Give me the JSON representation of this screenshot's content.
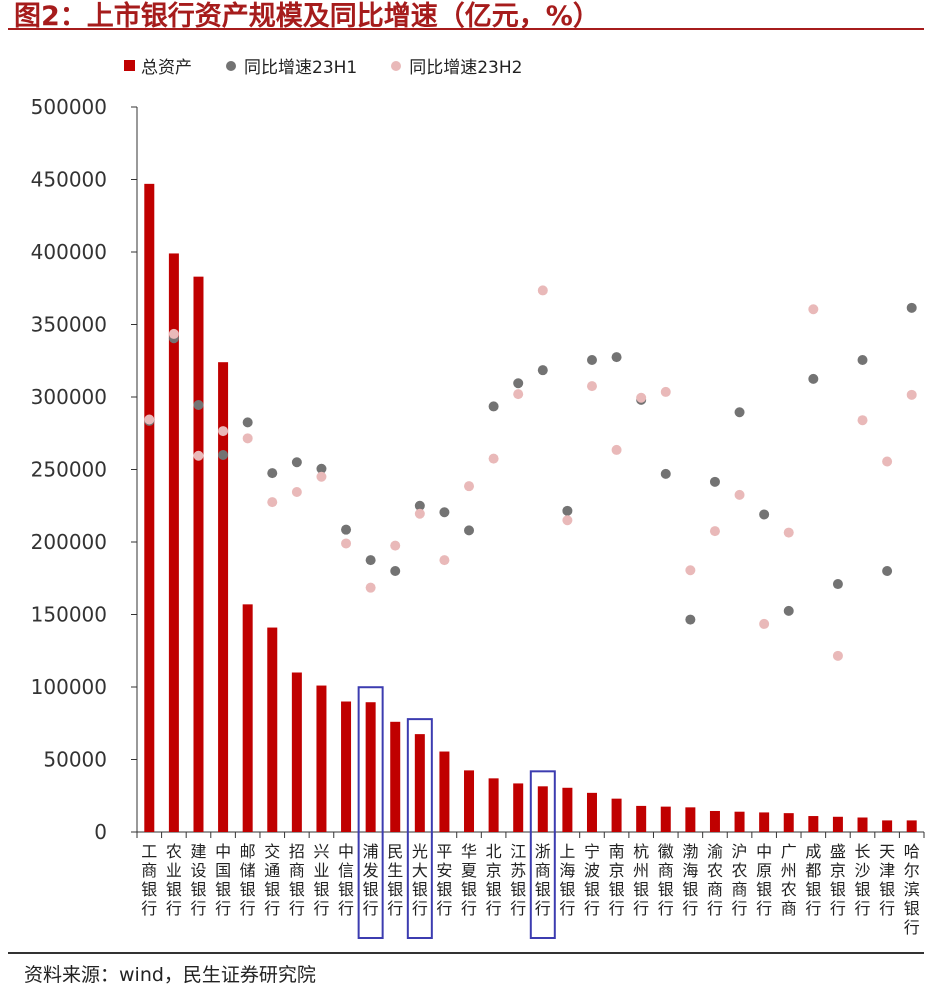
{
  "title": "图2：上市银行资产规模及同比增速（亿元，%）",
  "source": "资料来源：wind，民生证券研究院",
  "colors": {
    "bar": "#c00000",
    "h1": "#737373",
    "h2": "#e9b9b9",
    "highlight": "#3c3cb0",
    "title": "#a61c1c"
  },
  "legend": [
    {
      "label": "总资产",
      "swatch": "bar"
    },
    {
      "label": "同比增速23H1",
      "swatch": "h1"
    },
    {
      "label": "同比增速23H2",
      "swatch": "h2"
    }
  ],
  "chart_data": {
    "type": "bar",
    "ylim": [
      0,
      500000
    ],
    "yticks": [
      0,
      50000,
      100000,
      150000,
      200000,
      250000,
      300000,
      350000,
      400000,
      450000,
      500000
    ],
    "ylabel": "",
    "xlabel": "",
    "categories": [
      "工商银行",
      "农业银行",
      "建设银行",
      "中国银行",
      "邮储银行",
      "交通银行",
      "招商银行",
      "兴业银行",
      "中信银行",
      "浦发银行",
      "民生银行",
      "光大银行",
      "平安银行",
      "华夏银行",
      "北京银行",
      "江苏银行",
      "浙商银行",
      "上海银行",
      "宁波银行",
      "南京银行",
      "杭州银行",
      "徽商银行",
      "渤海银行",
      "渝农商行",
      "沪农商行",
      "中原银行",
      "广州农商",
      "成都银行",
      "盛京银行",
      "长沙银行",
      "天津银行",
      "哈尔滨银行"
    ],
    "highlighted": [
      "浦发银行",
      "光大银行",
      "浙商银行"
    ],
    "series": [
      {
        "name": "总资产",
        "kind": "bar",
        "values": [
          447000,
          399000,
          383000,
          324000,
          157000,
          141000,
          110000,
          101000,
          90000,
          89500,
          76000,
          67500,
          55500,
          42500,
          37000,
          33500,
          31500,
          30500,
          27000,
          23000,
          18000,
          17500,
          17000,
          14500,
          14000,
          13500,
          13000,
          11000,
          10500,
          10000,
          8000,
          8000
        ]
      },
      {
        "name": "同比增速23H1",
        "kind": "scatter",
        "y_axis_equivalent": [
          283500,
          340500,
          294500,
          260000,
          282500,
          247500,
          255000,
          250500,
          208500,
          187500,
          180000,
          225000,
          220500,
          208000,
          293500,
          309500,
          318500,
          221500,
          325500,
          327500,
          298000,
          247000,
          146500,
          241500,
          289500,
          219000,
          152500,
          312500,
          171000,
          325500,
          180000,
          361500
        ]
      },
      {
        "name": "同比增速23H2",
        "kind": "scatter",
        "y_axis_equivalent": [
          284500,
          343500,
          259500,
          276500,
          271500,
          227500,
          234500,
          245000,
          199000,
          168500,
          197500,
          219500,
          187500,
          238500,
          257500,
          302000,
          373500,
          215000,
          307500,
          263500,
          299500,
          303500,
          180500,
          207500,
          232500,
          143500,
          206500,
          360500,
          121500,
          284000,
          255500,
          301500
        ]
      }
    ]
  }
}
